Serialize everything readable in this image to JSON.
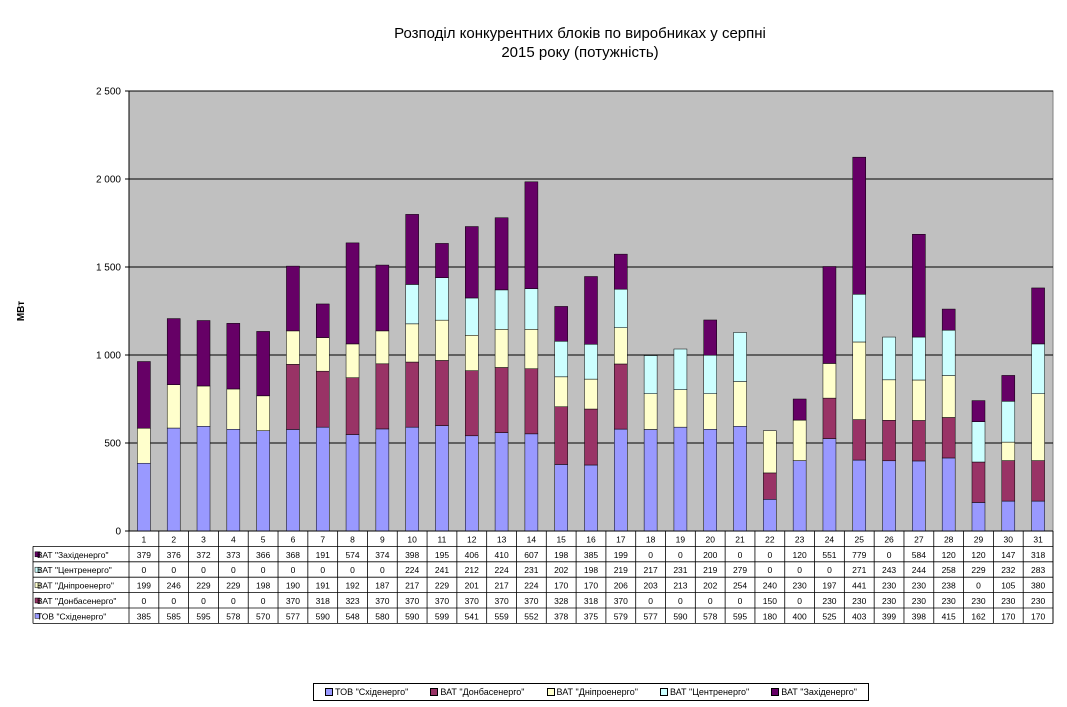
{
  "chart_data": {
    "type": "bar",
    "stacked": true,
    "title": [
      "Розподіл конкурентних  блоків по виробниках у серпні",
      "2015 року  (потужність)"
    ],
    "ylabel": "МВт",
    "ylim": [
      0,
      2500
    ],
    "yticks": [
      0,
      500,
      1000,
      1500,
      2000,
      2500
    ],
    "ytick_labels": [
      "0",
      "500",
      "1 000",
      "1 500",
      "2 000",
      "2 500"
    ],
    "grid": true,
    "legend_position": "bottom",
    "categories": [
      "1",
      "2",
      "3",
      "4",
      "5",
      "6",
      "7",
      "8",
      "9",
      "10",
      "11",
      "12",
      "13",
      "14",
      "15",
      "16",
      "17",
      "18",
      "19",
      "20",
      "21",
      "22",
      "23",
      "24",
      "25",
      "26",
      "27",
      "28",
      "29",
      "30",
      "31"
    ],
    "series": [
      {
        "name": "ТОВ \"Східенерго\"",
        "color": "#9999ff",
        "values": [
          385,
          585,
          595,
          578,
          570,
          577,
          590,
          548,
          580,
          590,
          599,
          541,
          559,
          552,
          378,
          375,
          579,
          577,
          590,
          578,
          595,
          180,
          400,
          525,
          403,
          399,
          398,
          415,
          162,
          170,
          170
        ]
      },
      {
        "name": "ВАТ \"Донбасенерго\"",
        "color": "#993366",
        "values": [
          0,
          0,
          0,
          0,
          0,
          370,
          318,
          323,
          370,
          370,
          370,
          370,
          370,
          370,
          328,
          318,
          370,
          0,
          0,
          0,
          0,
          150,
          0,
          230,
          230,
          230,
          230,
          230,
          230,
          230,
          230
        ]
      },
      {
        "name": "ВАТ \"Дніпроенерго\"",
        "color": "#ffffcc",
        "values": [
          199,
          246,
          229,
          229,
          198,
          190,
          191,
          192,
          187,
          217,
          229,
          201,
          217,
          224,
          170,
          170,
          206,
          203,
          213,
          202,
          254,
          240,
          230,
          197,
          441,
          230,
          230,
          238,
          0,
          105,
          380
        ]
      },
      {
        "name": "ВАТ \"Центренерго\"",
        "color": "#ccffff",
        "values": [
          0,
          0,
          0,
          0,
          0,
          0,
          0,
          0,
          0,
          224,
          241,
          212,
          224,
          231,
          202,
          198,
          219,
          217,
          231,
          219,
          279,
          0,
          0,
          0,
          271,
          243,
          244,
          258,
          229,
          232,
          283
        ]
      },
      {
        "name": "ВАТ \"Західенерго\"",
        "color": "#660066",
        "values": [
          379,
          376,
          372,
          373,
          366,
          368,
          191,
          574,
          374,
          398,
          195,
          406,
          410,
          607,
          198,
          385,
          199,
          0,
          0,
          200,
          0,
          0,
          120,
          551,
          779,
          0,
          584,
          120,
          120,
          147,
          318
        ]
      }
    ]
  }
}
